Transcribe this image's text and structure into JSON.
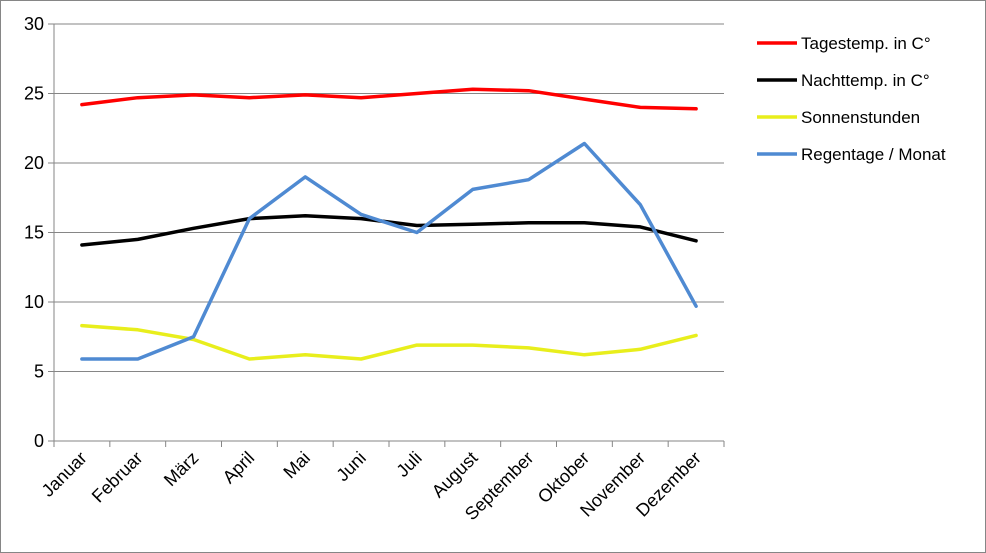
{
  "chart_data": {
    "type": "line",
    "categories": [
      "Januar",
      "Februar",
      "März",
      "April",
      "Mai",
      "Juni",
      "Juli",
      "August",
      "September",
      "Oktober",
      "November",
      "Dezember"
    ],
    "ylim": [
      0,
      30
    ],
    "yticks": [
      "0",
      "5",
      "10",
      "15",
      "20",
      "25",
      "30"
    ],
    "grid": true,
    "legend": "right",
    "series": [
      {
        "name": "Tagestemp. in C°",
        "color": "#ff0000",
        "values": [
          24.2,
          24.7,
          24.9,
          24.7,
          24.9,
          24.7,
          25.0,
          25.3,
          25.2,
          24.6,
          24.0,
          23.9
        ]
      },
      {
        "name": "Nachttemp. in C°",
        "color": "#000000",
        "values": [
          14.1,
          14.5,
          15.3,
          16.0,
          16.2,
          16.0,
          15.5,
          15.6,
          15.7,
          15.7,
          15.4,
          14.4
        ]
      },
      {
        "name": "Sonnenstunden",
        "color": "#e8ee1c",
        "values": [
          8.3,
          8.0,
          7.3,
          5.9,
          6.2,
          5.9,
          6.9,
          6.9,
          6.7,
          6.2,
          6.6,
          7.6
        ]
      },
      {
        "name": "Regentage / Monat",
        "color": "#4f8ad2",
        "values": [
          5.9,
          5.9,
          7.5,
          16.0,
          19.0,
          16.3,
          15.0,
          18.1,
          18.8,
          21.4,
          17.0,
          9.7
        ]
      }
    ]
  }
}
